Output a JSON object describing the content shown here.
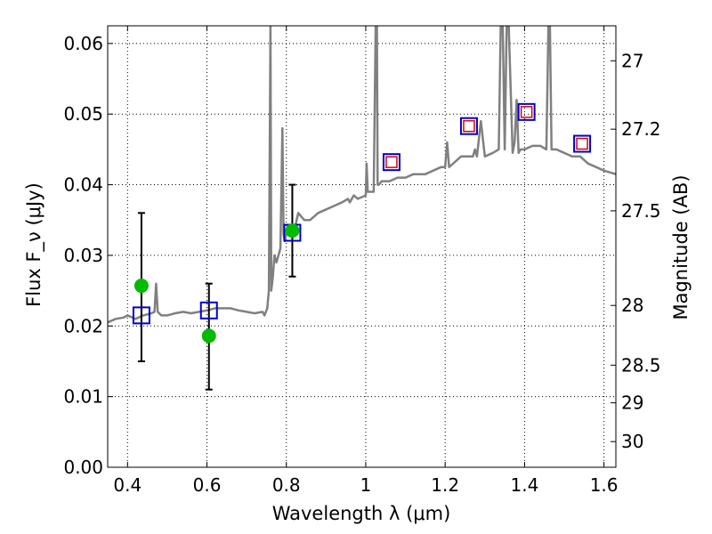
{
  "chart_data": {
    "type": "line",
    "xlabel": "Wavelength λ (μm)",
    "ylabel": "Flux F_ν (μJy)",
    "y2label": "Magnitude (AB)",
    "xlim": [
      0.35,
      1.63
    ],
    "ylim": [
      0.0,
      0.0625
    ],
    "grid": true,
    "x_ticks": [
      0.4,
      0.6,
      0.8,
      1.0,
      1.2,
      1.4,
      1.6
    ],
    "x_tick_labels": [
      "0.4",
      "0.6",
      "0.8",
      "1",
      "1.2",
      "1.4",
      "1.6"
    ],
    "y_ticks": [
      0.0,
      0.01,
      0.02,
      0.03,
      0.04,
      0.05,
      0.06
    ],
    "y_tick_labels": [
      "0.00",
      "0.01",
      "0.02",
      "0.03",
      "0.04",
      "0.05",
      "0.06"
    ],
    "y2_ticks": [
      {
        "label": "27",
        "mag": 27.0
      },
      {
        "label": "27.2",
        "mag": 27.2
      },
      {
        "label": "27.5",
        "mag": 27.5
      },
      {
        "label": "28",
        "mag": 28.0
      },
      {
        "label": "28.5",
        "mag": 28.5
      },
      {
        "label": "29",
        "mag": 29.0
      },
      {
        "label": "30",
        "mag": 30.0
      }
    ],
    "series": [
      {
        "kind": "line",
        "color": "#808080",
        "x": [
          0.35,
          0.37,
          0.39,
          0.4,
          0.42,
          0.44,
          0.46,
          0.468,
          0.472,
          0.476,
          0.485,
          0.5,
          0.52,
          0.54,
          0.56,
          0.58,
          0.6,
          0.62,
          0.64,
          0.66,
          0.68,
          0.7,
          0.72,
          0.74,
          0.745,
          0.752,
          0.756,
          0.76,
          0.762,
          0.766,
          0.77,
          0.775,
          0.785,
          0.79,
          0.793,
          0.796,
          0.8,
          0.803,
          0.806,
          0.81,
          0.82,
          0.83,
          0.845,
          0.86,
          0.88,
          0.9,
          0.92,
          0.94,
          0.955,
          0.96,
          0.965,
          0.97,
          0.98,
          1.0,
          1.002,
          1.005,
          1.01,
          1.02,
          1.025,
          1.028,
          1.03,
          1.033,
          1.036,
          1.04,
          1.06,
          1.08,
          1.1,
          1.12,
          1.15,
          1.17,
          1.19,
          1.2,
          1.205,
          1.21,
          1.22,
          1.24,
          1.26,
          1.27,
          1.275,
          1.28,
          1.29,
          1.3,
          1.32,
          1.335,
          1.34,
          1.345,
          1.35,
          1.355,
          1.36,
          1.37,
          1.375,
          1.38,
          1.385,
          1.39,
          1.4,
          1.42,
          1.44,
          1.455,
          1.46,
          1.464,
          1.468,
          1.48,
          1.5,
          1.52,
          1.54,
          1.56,
          1.58,
          1.6,
          1.63
        ],
        "y": [
          0.0205,
          0.021,
          0.0212,
          0.0215,
          0.021,
          0.0215,
          0.0218,
          0.022,
          0.026,
          0.022,
          0.0215,
          0.0215,
          0.0218,
          0.022,
          0.0218,
          0.022,
          0.0222,
          0.0225,
          0.0225,
          0.0225,
          0.0222,
          0.022,
          0.0218,
          0.022,
          0.0215,
          0.0225,
          0.025,
          0.0625,
          0.025,
          0.027,
          0.03,
          0.029,
          0.031,
          0.048,
          0.033,
          0.032,
          0.033,
          0.034,
          0.033,
          0.0335,
          0.0335,
          0.036,
          0.035,
          0.035,
          0.036,
          0.0365,
          0.037,
          0.0375,
          0.038,
          0.0375,
          0.038,
          0.0385,
          0.038,
          0.0385,
          0.043,
          0.039,
          0.039,
          0.039,
          0.0625,
          0.0625,
          0.04,
          0.04,
          0.0402,
          0.0405,
          0.0405,
          0.041,
          0.041,
          0.0415,
          0.0415,
          0.042,
          0.0425,
          0.0425,
          0.046,
          0.0425,
          0.043,
          0.044,
          0.044,
          0.044,
          0.045,
          0.044,
          0.049,
          0.044,
          0.0445,
          0.045,
          0.0625,
          0.0625,
          0.045,
          0.0625,
          0.0625,
          0.0445,
          0.046,
          0.052,
          0.0445,
          0.045,
          0.045,
          0.0455,
          0.0455,
          0.045,
          0.0625,
          0.0625,
          0.045,
          0.045,
          0.0445,
          0.044,
          0.044,
          0.043,
          0.0425,
          0.042,
          0.0415
        ]
      },
      {
        "kind": "scatter",
        "marker": "circle",
        "color": "#00bb00",
        "x": [
          0.435,
          0.605,
          0.815
        ],
        "y": [
          0.0257,
          0.0186,
          0.0335
        ],
        "yerr_low": [
          0.015,
          0.011,
          0.027
        ],
        "yerr_high": [
          0.036,
          0.026,
          0.04
        ]
      },
      {
        "kind": "scatter",
        "marker": "square-open",
        "color": "#0000cc",
        "x": [
          0.435,
          0.605,
          0.815,
          1.065,
          1.26,
          1.405,
          1.545
        ],
        "y": [
          0.0215,
          0.0222,
          0.0332,
          0.0432,
          0.0483,
          0.0503,
          0.0458
        ]
      },
      {
        "kind": "scatter",
        "marker": "square-open-small",
        "color": "#dd0000",
        "x": [
          1.065,
          1.26,
          1.405,
          1.545
        ],
        "y": [
          0.0432,
          0.0483,
          0.0503,
          0.0458
        ]
      }
    ]
  }
}
